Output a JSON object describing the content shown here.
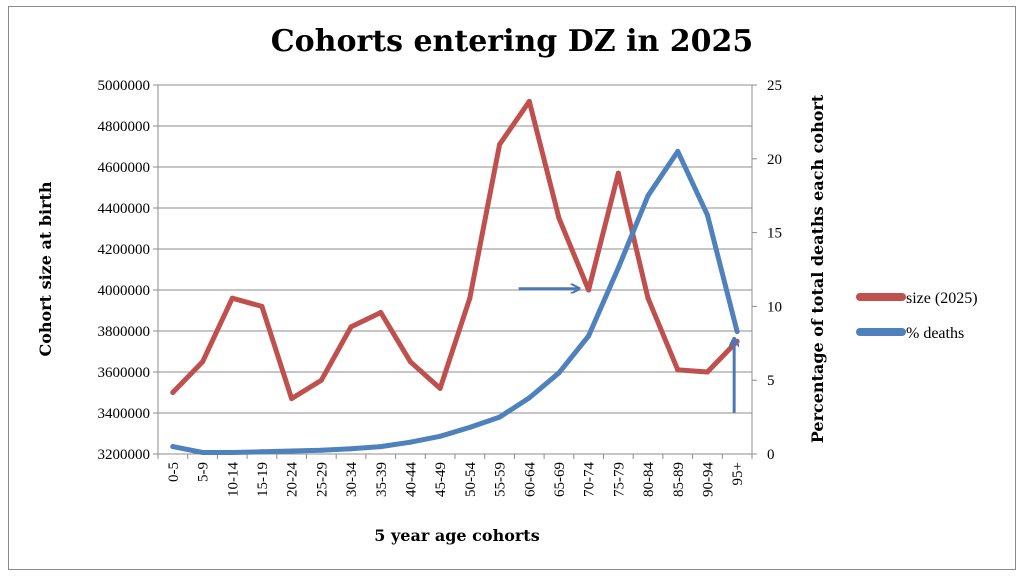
{
  "chart_data": {
    "type": "line",
    "title": "Cohorts entering DZ in 2025",
    "xlabel": "5 year age cohorts",
    "ylabel": "Cohort size at birth",
    "y2label": "Percentage of total deaths each cohort",
    "categories": [
      "0-5",
      "5-9",
      "10-14",
      "15-19",
      "20-24",
      "25-29",
      "30-34",
      "35-39",
      "40-44",
      "45-49",
      "50-54",
      "55-59",
      "60-64",
      "65-69",
      "70-74",
      "75-79",
      "80-84",
      "85-89",
      "90-94",
      "95+"
    ],
    "ylim": [
      3200000,
      5000000
    ],
    "yticks": [
      "3200000",
      "3400000",
      "3600000",
      "3800000",
      "4000000",
      "4200000",
      "4400000",
      "4600000",
      "4800000",
      "5000000"
    ],
    "y2lim": [
      0,
      25
    ],
    "y2ticks": [
      "0",
      "5",
      "10",
      "15",
      "20",
      "25"
    ],
    "grid": "horizontal",
    "legend_position": "right",
    "series": [
      {
        "name": "size (2025)",
        "axis": "left",
        "color": "#c0504d",
        "values": [
          3500000,
          3650000,
          3960000,
          3920000,
          3470000,
          3560000,
          3820000,
          3890000,
          3650000,
          3520000,
          3960000,
          4710000,
          4920000,
          4350000,
          4000000,
          4570000,
          3960000,
          3610000,
          3600000,
          3750000
        ]
      },
      {
        "name": "% deaths",
        "axis": "right",
        "color": "#4f81bd",
        "values": [
          0.5,
          0.1,
          0.1,
          0.15,
          0.2,
          0.25,
          0.35,
          0.5,
          0.8,
          1.2,
          1.8,
          2.5,
          3.8,
          5.5,
          8.0,
          12.6,
          17.5,
          20.5,
          16.2,
          8.3
        ]
      }
    ],
    "annotations": [
      {
        "type": "arrow",
        "direction": "right",
        "points_to": "70-74"
      },
      {
        "type": "arrow",
        "direction": "up",
        "points_to": "95+"
      }
    ]
  }
}
